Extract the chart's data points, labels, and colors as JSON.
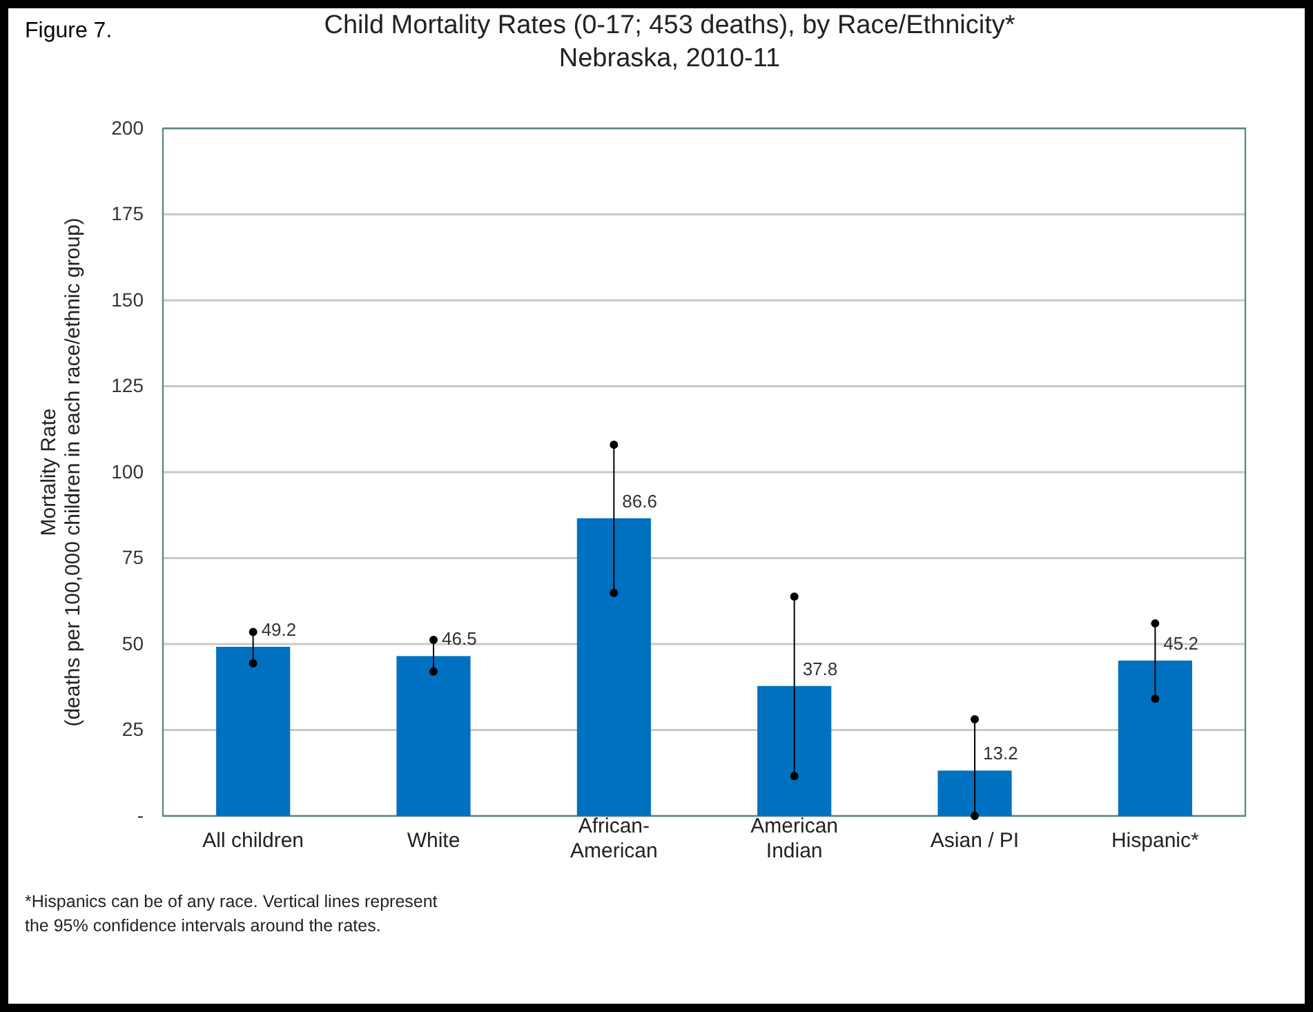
{
  "chart_data": {
    "type": "bar",
    "title": "Child Mortality Rates (0-17; 453 deaths), by Race/Ethnicity*",
    "subtitle": "Nebraska, 2010-11",
    "ylabel": "Mortality Rate\n(deaths per 100,000 children in each race/ethnic group)",
    "categories": [
      "All children",
      "White",
      "African-American",
      "American Indian",
      "Asian / PI",
      "Hispanic*"
    ],
    "values": [
      49.2,
      46.5,
      86.6,
      37.8,
      13.2,
      45.2
    ],
    "errors": [
      [
        44.4,
        53.5
      ],
      [
        42.0,
        51.2
      ],
      [
        64.9,
        108.0
      ],
      [
        11.6,
        63.8
      ],
      [
        0,
        28.1
      ],
      [
        34.1,
        56.0
      ]
    ],
    "color": "#0070c0",
    "ylim": [
      0,
      200
    ],
    "yticks": [
      {
        "value": 0,
        "label": "-"
      },
      25,
      50,
      75,
      100,
      125,
      150,
      175,
      200
    ],
    "grid": "y",
    "data_labels": true,
    "annotations": [
      "Figure 7.",
      "*Hispanics can be of any race.  Vertical lines represent the 95% confidence intervals around the rates."
    ]
  }
}
